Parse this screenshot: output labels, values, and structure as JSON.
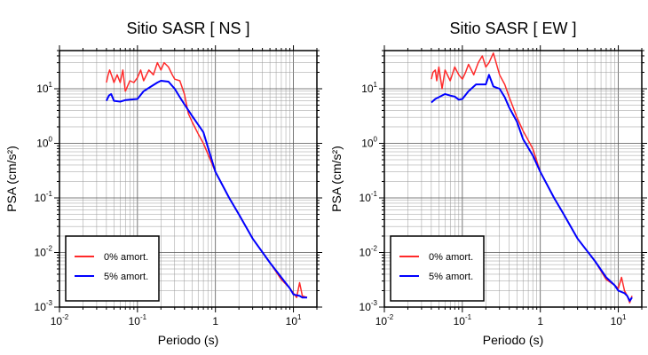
{
  "chart_data": [
    {
      "type": "line",
      "title": "Sitio SASR [ NS ]",
      "xlabel": "Periodo (s)",
      "ylabel": "PSA (cm/s²)",
      "xscale": "log",
      "yscale": "log",
      "xlim": [
        0.01,
        20
      ],
      "ylim": [
        0.001,
        50
      ],
      "grid": true,
      "legend": "bottom-left",
      "series": [
        {
          "name": "0% amort.",
          "color": "#ff2a2a",
          "points": [
            [
              0.04,
              13
            ],
            [
              0.042,
              18
            ],
            [
              0.044,
              22
            ],
            [
              0.047,
              17
            ],
            [
              0.05,
              13
            ],
            [
              0.055,
              18
            ],
            [
              0.06,
              13
            ],
            [
              0.065,
              22
            ],
            [
              0.07,
              9
            ],
            [
              0.08,
              14
            ],
            [
              0.09,
              13
            ],
            [
              0.1,
              16
            ],
            [
              0.11,
              22
            ],
            [
              0.12,
              14
            ],
            [
              0.14,
              22
            ],
            [
              0.16,
              18
            ],
            [
              0.18,
              30
            ],
            [
              0.2,
              22
            ],
            [
              0.22,
              30
            ],
            [
              0.25,
              25
            ],
            [
              0.28,
              18
            ],
            [
              0.3,
              15
            ],
            [
              0.35,
              14
            ],
            [
              0.4,
              8
            ],
            [
              0.45,
              3.5
            ],
            [
              0.5,
              2.5
            ],
            [
              0.6,
              1.5
            ],
            [
              0.7,
              1.0
            ],
            [
              1.0,
              0.3
            ],
            [
              1.5,
              0.1
            ],
            [
              2,
              0.05
            ],
            [
              3,
              0.018
            ],
            [
              5,
              0.0065
            ],
            [
              7,
              0.0032
            ],
            [
              9,
              0.0022
            ],
            [
              10,
              0.0018
            ],
            [
              11,
              0.0015
            ],
            [
              12,
              0.0028
            ],
            [
              13,
              0.0016
            ],
            [
              15,
              0.0015
            ]
          ]
        },
        {
          "name": "5% amort.",
          "color": "#0000ff",
          "points": [
            [
              0.04,
              6
            ],
            [
              0.043,
              7.5
            ],
            [
              0.046,
              8
            ],
            [
              0.05,
              6
            ],
            [
              0.06,
              5.8
            ],
            [
              0.07,
              6.2
            ],
            [
              0.08,
              6.3
            ],
            [
              0.1,
              6.5
            ],
            [
              0.12,
              9
            ],
            [
              0.15,
              11
            ],
            [
              0.18,
              13
            ],
            [
              0.2,
              14
            ],
            [
              0.25,
              13.5
            ],
            [
              0.3,
              10
            ],
            [
              0.35,
              7
            ],
            [
              0.4,
              5.2
            ],
            [
              0.5,
              3.2
            ],
            [
              0.7,
              1.6
            ],
            [
              1.0,
              0.3
            ],
            [
              1.5,
              0.1
            ],
            [
              2,
              0.05
            ],
            [
              3,
              0.018
            ],
            [
              5,
              0.0065
            ],
            [
              7,
              0.0035
            ],
            [
              9,
              0.0022
            ],
            [
              10,
              0.0017
            ],
            [
              12,
              0.0016
            ],
            [
              13,
              0.0015
            ],
            [
              15,
              0.0015
            ]
          ]
        }
      ]
    },
    {
      "type": "line",
      "title": "Sitio SASR [ EW ]",
      "xlabel": "Periodo (s)",
      "ylabel": "PSA (cm/s²)",
      "xscale": "log",
      "yscale": "log",
      "xlim": [
        0.01,
        20
      ],
      "ylim": [
        0.001,
        50
      ],
      "grid": true,
      "legend": "bottom-left",
      "series": [
        {
          "name": "0% amort.",
          "color": "#ff2a2a",
          "points": [
            [
              0.04,
              15
            ],
            [
              0.042,
              20
            ],
            [
              0.045,
              22
            ],
            [
              0.047,
              14
            ],
            [
              0.05,
              25
            ],
            [
              0.055,
              10
            ],
            [
              0.06,
              22
            ],
            [
              0.07,
              14
            ],
            [
              0.08,
              25
            ],
            [
              0.09,
              18
            ],
            [
              0.1,
              15
            ],
            [
              0.11,
              20
            ],
            [
              0.12,
              28
            ],
            [
              0.14,
              18
            ],
            [
              0.16,
              30
            ],
            [
              0.18,
              40
            ],
            [
              0.2,
              25
            ],
            [
              0.22,
              30
            ],
            [
              0.25,
              45
            ],
            [
              0.3,
              18
            ],
            [
              0.35,
              12
            ],
            [
              0.4,
              7
            ],
            [
              0.5,
              3
            ],
            [
              0.6,
              1.7
            ],
            [
              0.8,
              0.8
            ],
            [
              1.0,
              0.3
            ],
            [
              1.5,
              0.1
            ],
            [
              2,
              0.05
            ],
            [
              3,
              0.018
            ],
            [
              5,
              0.007
            ],
            [
              7,
              0.0032
            ],
            [
              9,
              0.0025
            ],
            [
              10,
              0.0022
            ],
            [
              11,
              0.0035
            ],
            [
              12,
              0.002
            ],
            [
              13,
              0.0016
            ],
            [
              14,
              0.0012
            ],
            [
              15,
              0.0016
            ]
          ]
        },
        {
          "name": "5% amort.",
          "color": "#0000ff",
          "points": [
            [
              0.04,
              5.6
            ],
            [
              0.045,
              6.5
            ],
            [
              0.05,
              7
            ],
            [
              0.06,
              8
            ],
            [
              0.07,
              7.5
            ],
            [
              0.08,
              7.2
            ],
            [
              0.09,
              6.3
            ],
            [
              0.1,
              6.5
            ],
            [
              0.12,
              9
            ],
            [
              0.15,
              12
            ],
            [
              0.18,
              12
            ],
            [
              0.2,
              12
            ],
            [
              0.22,
              18
            ],
            [
              0.25,
              11
            ],
            [
              0.3,
              10
            ],
            [
              0.35,
              7
            ],
            [
              0.4,
              4.5
            ],
            [
              0.5,
              2.5
            ],
            [
              0.6,
              1.2
            ],
            [
              0.8,
              0.6
            ],
            [
              1.0,
              0.3
            ],
            [
              1.5,
              0.1
            ],
            [
              2,
              0.05
            ],
            [
              3,
              0.018
            ],
            [
              5,
              0.007
            ],
            [
              7,
              0.0035
            ],
            [
              9,
              0.0025
            ],
            [
              10,
              0.002
            ],
            [
              12,
              0.0018
            ],
            [
              13,
              0.0016
            ],
            [
              14,
              0.0013
            ],
            [
              15,
              0.0015
            ]
          ]
        }
      ]
    }
  ]
}
